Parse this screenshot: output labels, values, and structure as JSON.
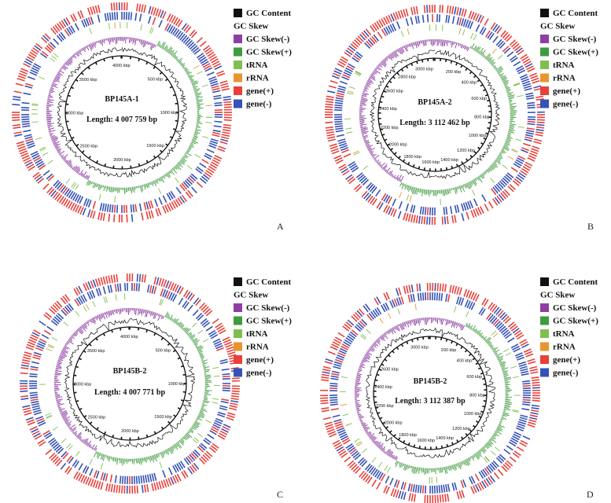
{
  "legend": {
    "gc_content": "GC Content",
    "gc_skew": "GC Skew",
    "gc_skew_neg": "GC Skew(-)",
    "gc_skew_pos": "GC Skew(+)",
    "trna": "tRNA",
    "rrna": "rRNA",
    "gene_pos": "gene(+)",
    "gene_neg": "gene(-)"
  },
  "colors": {
    "gc_content": "#111111",
    "gc_skew_neg": "#8e3fa3",
    "gc_skew_pos": "#3f9b3f",
    "trna": "#7fbf4f",
    "rrna": "#e6962e",
    "gene_pos": "#e8403a",
    "gene_neg": "#3553b5"
  },
  "panels": [
    {
      "letter": "A",
      "title": "BP145A-1",
      "length": "Length: 4 007 759 bp",
      "ticks": [
        {
          "label": "4000 kbp",
          "kbp": 4000
        },
        {
          "label": "500 kbp",
          "kbp": 500
        },
        {
          "label": "1000 kbp",
          "kbp": 1000
        },
        {
          "label": "1500 kbp",
          "kbp": 1500
        },
        {
          "label": "2000 kbp",
          "kbp": 2000
        },
        {
          "label": "2500 kbp",
          "kbp": 2500
        },
        {
          "label": "3000 kbp",
          "kbp": 3000
        },
        {
          "label": "3500 kbp",
          "kbp": 3500
        }
      ],
      "genome_kbp": 4007.759
    },
    {
      "letter": "B",
      "title": "BP145A-2",
      "length": "Length: 3 112 462 bp",
      "ticks": [
        {
          "label": "200 kbp",
          "kbp": 200
        },
        {
          "label": "400 kbp",
          "kbp": 400
        },
        {
          "label": "600 kbp",
          "kbp": 600
        },
        {
          "label": "800 kbp",
          "kbp": 800
        },
        {
          "label": "1000 kbp",
          "kbp": 1000
        },
        {
          "label": "1200 kbp",
          "kbp": 1200
        },
        {
          "label": "1400 kbp",
          "kbp": 1400
        },
        {
          "label": "1600 kbp",
          "kbp": 1600
        },
        {
          "label": "1800 kbp",
          "kbp": 1800
        },
        {
          "label": "2000 kbp",
          "kbp": 2000
        },
        {
          "label": "2200 kbp",
          "kbp": 2200
        },
        {
          "label": "2400 kbp",
          "kbp": 2400
        },
        {
          "label": "2600 kbp",
          "kbp": 2600
        },
        {
          "label": "2800 kbp",
          "kbp": 2800
        },
        {
          "label": "3000 kbp",
          "kbp": 3000
        }
      ],
      "genome_kbp": 3112.462
    },
    {
      "letter": "C",
      "title": "BP145B-2",
      "length": "Length: 4 007 771 bp",
      "ticks": [
        {
          "label": "4000 kbp",
          "kbp": 4000
        },
        {
          "label": "500 kbp",
          "kbp": 500
        },
        {
          "label": "1000 kbp",
          "kbp": 1000
        },
        {
          "label": "1500 kbp",
          "kbp": 1500
        },
        {
          "label": "2000 kbp",
          "kbp": 2000
        },
        {
          "label": "2500 kbp",
          "kbp": 2500
        },
        {
          "label": "3000 kbp",
          "kbp": 3000
        },
        {
          "label": "3500 kbp",
          "kbp": 3500
        }
      ],
      "genome_kbp": 4007.771
    },
    {
      "letter": "D",
      "title": "BP145B-2",
      "length": "Length: 3 112 387 bp",
      "ticks": [
        {
          "label": "200 kbp",
          "kbp": 200
        },
        {
          "label": "400 kbp",
          "kbp": 400
        },
        {
          "label": "600 kbp",
          "kbp": 600
        },
        {
          "label": "800 kbp",
          "kbp": 800
        },
        {
          "label": "1000 kbp",
          "kbp": 1000
        },
        {
          "label": "1200 kbp",
          "kbp": 1200
        },
        {
          "label": "1400 kbp",
          "kbp": 1400
        },
        {
          "label": "1600 kbp",
          "kbp": 1600
        },
        {
          "label": "1800 kbp",
          "kbp": 1800
        },
        {
          "label": "2000 kbp",
          "kbp": 2000
        },
        {
          "label": "2200 kbp",
          "kbp": 2200
        },
        {
          "label": "2400 kbp",
          "kbp": 2400
        },
        {
          "label": "2600 kbp",
          "kbp": 2600
        },
        {
          "label": "3000 kbp",
          "kbp": 3000
        }
      ],
      "genome_kbp": 3112.387
    }
  ]
}
